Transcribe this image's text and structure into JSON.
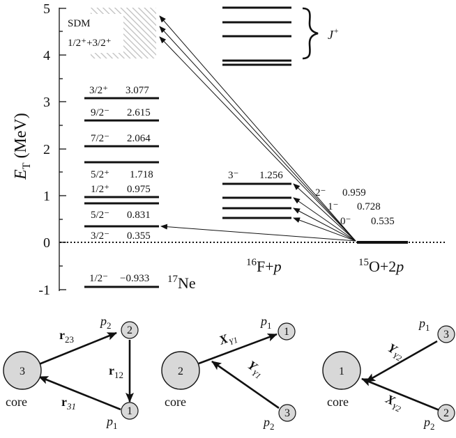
{
  "energy_diagram": {
    "y_axis": {
      "label_italic": "E",
      "label_sub": "T",
      "label_unit": "(MeV)",
      "ticks": [
        "5",
        "4",
        "3",
        "2",
        "1",
        "0",
        "-1"
      ]
    },
    "sdm_box": {
      "label": "SDM",
      "jpi": "1/2⁺+3/2⁺"
    },
    "ne17_levels": [
      {
        "jpi": "3/2⁺",
        "energy": "3.077",
        "value": 3.077
      },
      {
        "jpi": "9/2⁻",
        "energy": "2.615",
        "value": 2.615
      },
      {
        "jpi": "7/2⁻",
        "energy": "2.064",
        "value": 2.064
      },
      {
        "jpi": "5/2⁺",
        "energy": "1.718",
        "value": 1.718
      },
      {
        "jpi": "1/2⁺",
        "energy": "0.975",
        "value": 0.975
      },
      {
        "jpi": "5/2⁻",
        "energy": "0.831",
        "value": 0.831
      },
      {
        "jpi": "3/2⁻",
        "energy": "0.355",
        "value": 0.355
      },
      {
        "jpi": "1/2⁻",
        "energy": "−0.933",
        "value": -0.933
      }
    ],
    "ne17_label": {
      "mass": "17",
      "element": "Ne"
    },
    "f16_levels": [
      {
        "jpi": "3⁻",
        "energy": "1.256",
        "value": 1.256
      },
      {
        "jpi": "2⁻",
        "energy": "0.959",
        "value": 0.959
      },
      {
        "jpi": "1⁻",
        "energy": "0.728",
        "value": 0.728
      },
      {
        "jpi": "0⁻",
        "energy": "0.535",
        "value": 0.535
      }
    ],
    "f16_label": {
      "mass": "16",
      "element": "F+",
      "particle": "p"
    },
    "o15_label": {
      "mass": "15",
      "element": "O+2",
      "particle": "p"
    },
    "jplus_label": {
      "j": "J",
      "sup": "+"
    }
  },
  "jacobi": {
    "t_system": {
      "core_label": "core",
      "core_index": "3",
      "p2_label": "p",
      "p2_sub": "2",
      "p2_index": "2",
      "p1_label": "p",
      "p1_sub": "1",
      "p1_index": "1",
      "r23": "r",
      "r23_sub": "23",
      "r12": "r",
      "r12_sub": "12",
      "r31": "r",
      "r31_sub": "31"
    },
    "y1_system": {
      "core_label": "core",
      "core_index": "2",
      "p1_label": "p",
      "p1_sub": "1",
      "p1_index": "1",
      "p2_label": "p",
      "p2_sub": "2",
      "p2_index": "3",
      "x_label": "X",
      "x_sub": "Y1",
      "y_label": "Y",
      "y_sub": "Y1"
    },
    "y2_system": {
      "core_label": "core",
      "core_index": "1",
      "p1_label": "p",
      "p1_sub": "1",
      "p1_index": "3",
      "p2_label": "p",
      "p2_sub": "2",
      "p2_index": "2",
      "y_label": "Y",
      "y_sub": "Y2",
      "x_label": "X",
      "x_sub": "Y2"
    }
  }
}
